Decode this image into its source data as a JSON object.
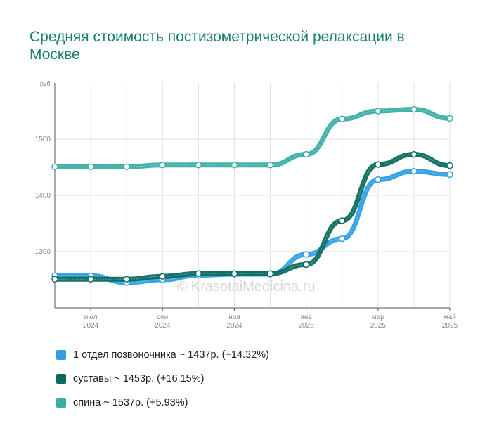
{
  "title": "Средняя стоимость постизометрической релаксации в Москве",
  "watermark": "© KrasotaiMedicina.ru",
  "chart_data": {
    "type": "line",
    "title": "Средняя стоимость постизометрической релаксации в Москве",
    "yunit": "руб.",
    "ylim": [
      1200,
      1600
    ],
    "yticks": [
      "1300",
      "1400",
      "1500"
    ],
    "ytick_values": [
      1300,
      1400,
      1500
    ],
    "xticks": [
      {
        "month": "июл",
        "year": "2024",
        "i": 1
      },
      {
        "month": "сен",
        "year": "2024",
        "i": 3
      },
      {
        "month": "ноя",
        "year": "2024",
        "i": 5
      },
      {
        "month": "янв",
        "year": "2025",
        "i": 7
      },
      {
        "month": "мар",
        "year": "2025",
        "i": 9
      },
      {
        "month": "май",
        "year": "2025",
        "i": 11
      }
    ],
    "x": [
      "2024-06",
      "2024-07",
      "2024-08",
      "2024-09",
      "2024-10",
      "2024-11",
      "2024-12",
      "2025-01",
      "2025-02",
      "2025-03",
      "2025-04",
      "2025-05"
    ],
    "grid": true,
    "legend_position": "bottom",
    "series": [
      {
        "name": "1 отдел позвоночника",
        "label": "1 отдел позвоночника ~ 1437р. (+14.32%)",
        "color": "#2f9fe0",
        "values": [
          1257,
          1257,
          1245,
          1250,
          1258,
          1260,
          1260,
          1295,
          1323,
          1428,
          1443,
          1437
        ]
      },
      {
        "name": "суставы",
        "label": "суставы ~ 1453р. (+16.15%)",
        "color": "#0b6b5f",
        "values": [
          1251,
          1251,
          1251,
          1256,
          1261,
          1261,
          1261,
          1277,
          1355,
          1455,
          1473,
          1453
        ]
      },
      {
        "name": "спина",
        "label": "спина ~ 1537р. (+5.93%)",
        "color": "#3aaea4",
        "values": [
          1451,
          1451,
          1451,
          1454,
          1454,
          1454,
          1454,
          1473,
          1536,
          1550,
          1553,
          1537
        ]
      }
    ]
  }
}
